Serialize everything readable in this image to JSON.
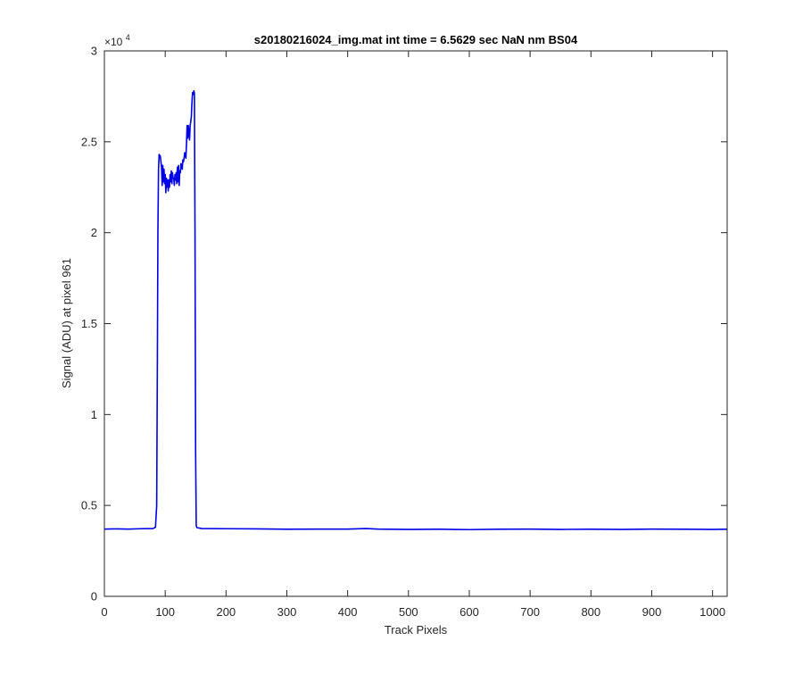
{
  "chart_data": {
    "type": "line",
    "title": "s20180216024_img.mat int time = 6.5629 sec  NaN nm BS04",
    "xlabel": "Track Pixels",
    "ylabel": "Signal (ADU) at pixel 961",
    "xlim": [
      0,
      1024
    ],
    "ylim": [
      0,
      30000
    ],
    "x_ticks": [
      0,
      100,
      200,
      300,
      400,
      500,
      600,
      700,
      800,
      900,
      1000
    ],
    "x_tick_labels": [
      "0",
      "100",
      "200",
      "300",
      "400",
      "500",
      "600",
      "700",
      "800",
      "900",
      "1000"
    ],
    "y_ticks": [
      0,
      5000,
      10000,
      15000,
      20000,
      25000,
      30000
    ],
    "y_tick_labels": [
      "0",
      "0.5",
      "1",
      "1.5",
      "2",
      "2.5",
      "3"
    ],
    "y_multiplier_base": "×10",
    "y_multiplier_exp": "4",
    "grid": false,
    "line_color": "#0000e6",
    "series": [
      {
        "x": [
          0,
          20,
          40,
          60,
          80,
          84,
          86,
          87,
          88,
          89,
          90,
          92,
          94,
          95,
          96,
          97,
          98,
          99,
          100,
          101,
          102,
          103,
          104,
          105,
          106,
          107,
          108,
          109,
          110,
          111,
          112,
          113,
          114,
          115,
          116,
          117,
          118,
          119,
          120,
          121,
          122,
          123,
          124,
          125,
          126,
          127,
          128,
          129,
          130,
          131,
          132,
          133,
          134,
          135,
          136,
          137,
          138,
          139,
          140,
          141,
          142,
          143,
          144,
          145,
          146,
          147,
          148,
          149,
          150,
          151,
          152,
          160,
          200,
          250,
          300,
          350,
          400,
          430,
          450,
          500,
          550,
          600,
          650,
          700,
          750,
          800,
          850,
          900,
          950,
          1000,
          1024
        ],
        "y": [
          3700,
          3710,
          3700,
          3720,
          3730,
          3800,
          5000,
          12000,
          20000,
          23500,
          24300,
          24200,
          23600,
          22600,
          23700,
          22800,
          23500,
          22700,
          23200,
          22200,
          23000,
          22500,
          22900,
          22300,
          22900,
          22500,
          23200,
          22800,
          23400,
          22700,
          23300,
          23000,
          23000,
          22600,
          23200,
          22900,
          23300,
          22700,
          23600,
          22800,
          23700,
          22600,
          23400,
          23300,
          23800,
          23600,
          23500,
          24000,
          23900,
          24100,
          24400,
          24300,
          24100,
          24900,
          25900,
          25200,
          25900,
          25500,
          25100,
          25900,
          26100,
          26400,
          27200,
          27700,
          27600,
          27800,
          27700,
          20000,
          8000,
          3900,
          3780,
          3730,
          3720,
          3710,
          3690,
          3700,
          3700,
          3730,
          3700,
          3680,
          3690,
          3670,
          3690,
          3700,
          3680,
          3690,
          3680,
          3700,
          3690,
          3680,
          3690
        ]
      }
    ]
  }
}
